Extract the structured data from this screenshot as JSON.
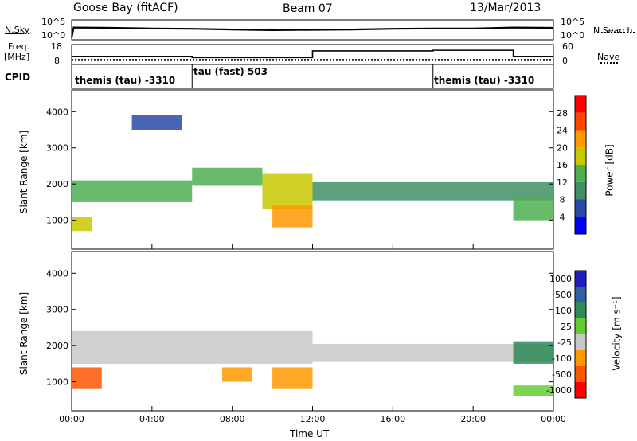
{
  "header": {
    "station": "Goose Bay (fitACF)",
    "beam": "Beam 07",
    "date": "13/Mar/2013"
  },
  "labels": {
    "nsky": "N.Sky",
    "nsearch": "N.Search",
    "freq": "Freq.",
    "freq_unit": "[MHz]",
    "nave": "Nave",
    "cpid": "CPID",
    "slant_range": "Slant Range [km]",
    "time_axis": "Time UT",
    "power": "Power [dB]",
    "velocity": "Velocity [m s⁻¹]",
    "noise_ticks_left": [
      "10^5",
      "10^0"
    ],
    "noise_ticks_right": [
      "10^5",
      "10^0"
    ],
    "freq_ticks": [
      "18",
      "8"
    ],
    "nave_ticks": [
      "60",
      "0"
    ]
  },
  "cpid_segments": [
    {
      "label": "themis (tau) -3310",
      "start_hour": 0,
      "end_hour": 6
    },
    {
      "label": "tau (fast) 503",
      "start_hour": 6,
      "end_hour": 18
    },
    {
      "label": "themis (tau) -3310",
      "start_hour": 18,
      "end_hour": 24
    }
  ],
  "chart_data": [
    {
      "type": "line",
      "name": "noise",
      "xlim": [
        0,
        24
      ],
      "ylim": [
        0,
        5
      ],
      "log_scale": true,
      "series": [
        {
          "name": "N.Sky",
          "x": [
            0,
            0.1,
            2,
            4,
            6,
            8,
            10,
            12,
            14,
            16,
            18,
            20,
            22,
            24
          ],
          "y": [
            0.2,
            3.2,
            3.1,
            2.9,
            2.8,
            2.6,
            2.4,
            2.5,
            2.6,
            2.8,
            2.9,
            2.9,
            3.2,
            3.1
          ]
        }
      ]
    },
    {
      "type": "line",
      "name": "freq-nave",
      "xlim": [
        0,
        24
      ],
      "series": [
        {
          "name": "Freq.",
          "unit": "MHz",
          "ylim": [
            8,
            18
          ],
          "x": [
            0,
            24
          ],
          "y": [
            10,
            10
          ]
        },
        {
          "name": "Nave",
          "ylim": [
            0,
            60
          ],
          "x": [
            0,
            6,
            6,
            12,
            12,
            18,
            18,
            22,
            22,
            24
          ],
          "y": [
            24,
            24,
            20,
            20,
            42,
            42,
            44,
            44,
            24,
            24
          ]
        }
      ]
    },
    {
      "type": "heatmap",
      "name": "power",
      "title": "Power [dB]",
      "xlabel": "Time UT",
      "ylabel": "Slant Range [km]",
      "xlim": [
        0,
        24
      ],
      "ylim": [
        200,
        4600
      ],
      "x_ticks": [
        "00:00",
        "04:00",
        "08:00",
        "12:00",
        "16:00",
        "20:00",
        "00:00"
      ],
      "y_ticks": [
        1000,
        2000,
        3000,
        4000
      ],
      "colorbar": {
        "ticks": [
          4,
          8,
          12,
          16,
          20,
          24,
          28
        ],
        "min": 0,
        "max": 32,
        "colors": [
          "#0000ff",
          "#2a4aa8",
          "#3f8f66",
          "#4caf50",
          "#c8c800",
          "#ff9900",
          "#ff4400",
          "#ff0000"
        ]
      },
      "regions": [
        {
          "t0": 0.0,
          "t1": 6.0,
          "r0": 1500,
          "r1": 2100,
          "val": 12
        },
        {
          "t0": 6.0,
          "t1": 9.5,
          "r0": 1950,
          "r1": 2450,
          "val": 14
        },
        {
          "t0": 9.5,
          "t1": 12.0,
          "r0": 1300,
          "r1": 2300,
          "val": 16
        },
        {
          "t0": 12.0,
          "t1": 24.0,
          "r0": 1550,
          "r1": 2050,
          "val": 8
        },
        {
          "t0": 10.0,
          "t1": 12.0,
          "r0": 800,
          "r1": 1400,
          "val": 20
        },
        {
          "t0": 22.0,
          "t1": 24.0,
          "r0": 1000,
          "r1": 1600,
          "val": 14
        },
        {
          "t0": 3.0,
          "t1": 5.5,
          "r0": 3500,
          "r1": 3900,
          "val": 6
        },
        {
          "t0": 0.0,
          "t1": 1.0,
          "r0": 700,
          "r1": 1100,
          "val": 18
        }
      ]
    },
    {
      "type": "heatmap",
      "name": "velocity",
      "title": "Velocity [m s⁻¹]",
      "xlabel": "Time UT",
      "ylabel": "Slant Range [km]",
      "xlim": [
        0,
        24
      ],
      "ylim": [
        200,
        4600
      ],
      "x_ticks": [
        "00:00",
        "04:00",
        "08:00",
        "12:00",
        "16:00",
        "20:00",
        "00:00"
      ],
      "y_ticks": [
        1000,
        2000,
        3000,
        4000
      ],
      "colorbar": {
        "ticks": [
          1000,
          500,
          100,
          25,
          -25,
          -100,
          -500,
          -1000
        ],
        "colors": [
          "#2020c0",
          "#3060a0",
          "#2e8b57",
          "#66cc33",
          "#c8c8c8",
          "#ff9900",
          "#ff5500",
          "#ff0000"
        ]
      },
      "regions": [
        {
          "t0": 0.0,
          "t1": 12.0,
          "r0": 1500,
          "r1": 2400,
          "val": 0
        },
        {
          "t0": 12.0,
          "t1": 24.0,
          "r0": 1550,
          "r1": 2050,
          "val": 0
        },
        {
          "t0": 0.0,
          "t1": 1.5,
          "r0": 800,
          "r1": 1400,
          "val": -200
        },
        {
          "t0": 7.5,
          "t1": 9.0,
          "r0": 1000,
          "r1": 1400,
          "val": -100
        },
        {
          "t0": 10.0,
          "t1": 12.0,
          "r0": 800,
          "r1": 1400,
          "val": -100
        },
        {
          "t0": 22.0,
          "t1": 24.0,
          "r0": 1500,
          "r1": 2100,
          "val": 100
        },
        {
          "t0": 22.0,
          "t1": 24.0,
          "r0": 600,
          "r1": 900,
          "val": 60
        }
      ]
    }
  ]
}
